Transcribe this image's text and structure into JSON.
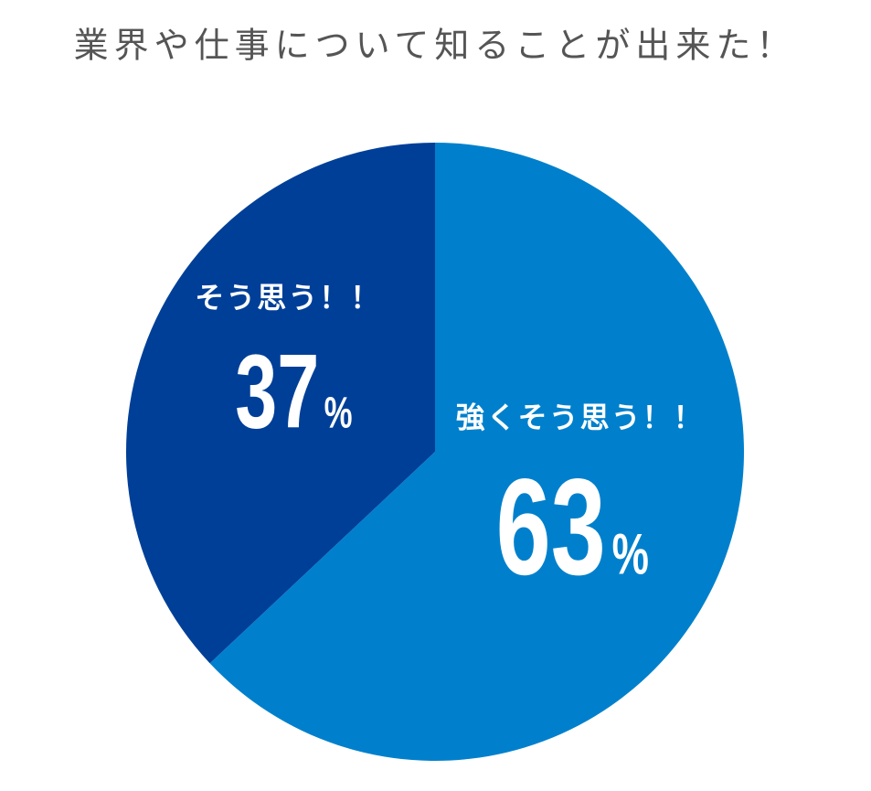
{
  "chart_data": {
    "type": "pie",
    "title": "業界や仕事について知ることが出来た！",
    "categories": [
      "強くそう思う！！",
      "そう思う！！"
    ],
    "values": [
      63,
      37
    ],
    "unit": "%",
    "colors": [
      "#0080cc",
      "#003f98"
    ]
  }
}
